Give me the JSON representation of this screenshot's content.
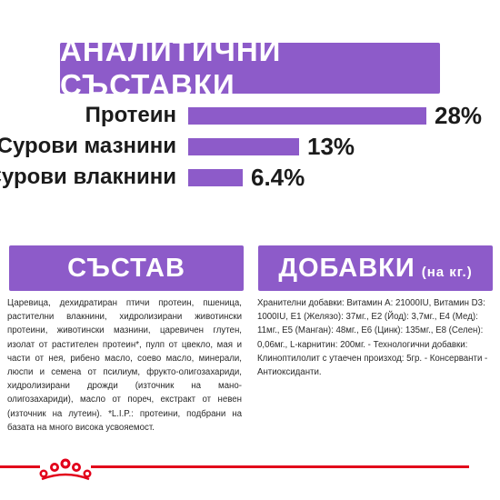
{
  "top_banner": {
    "title": "АНАЛИТИЧНИ СЪСТАВКИ"
  },
  "chart_data": {
    "type": "bar",
    "categories": [
      "Протеин",
      "Сурови мазнини",
      "Сурови влакнини"
    ],
    "values": [
      28,
      13,
      6.4
    ],
    "value_labels": [
      "28%",
      "13%",
      "6.4%"
    ],
    "unit": "%",
    "xlim": [
      0,
      28
    ],
    "orientation": "horizontal",
    "bar_color": "#8d5bc9"
  },
  "composition": {
    "title": "СЪСТАВ",
    "text": "Царевица, дехидратиран птичи протеин, пшеница, растителни влакнини, хидролизирани животински протеини, животински мазнини, царевичен глутен, изолат от растителен протеин*, пулп от цвекло, мая и части от нея, рибено масло, соево масло, минерали, люспи и семена от псилиум, фрукто-олигозахариди, хидролизирани дрожди (източник на мано- олигозахариди), масло от пореч, екстракт от невен (източник на лутеин). *L.I.P.: протеини, подбрани на базата на много висока усвояемост."
  },
  "additives": {
    "title": "ДОБАВКИ",
    "subtitle": "(на кг.)",
    "text": "Хранителни добавки: Витамин А: 21000IU, Витамин D3: 1000IU, Е1 (Желязо): 37мг., Е2 (Йод): 3,7мг., Е4 (Мед): 11мг., Е5 (Манган): 48мг., Е6 (Цинк): 135мг., Е8 (Селен): 0,06мг., L-карнитин: 200мг. - Технологични добавки: Клиноптилолит с утаечен произход: 5гр. - Консерванти - Антиоксиданти."
  },
  "footer": {
    "logo_icon": "royal-canin-crown-icon",
    "accent_color": "#e2001a"
  },
  "colors": {
    "accent": "#8d5bc9",
    "text": "#1b1b1b"
  }
}
